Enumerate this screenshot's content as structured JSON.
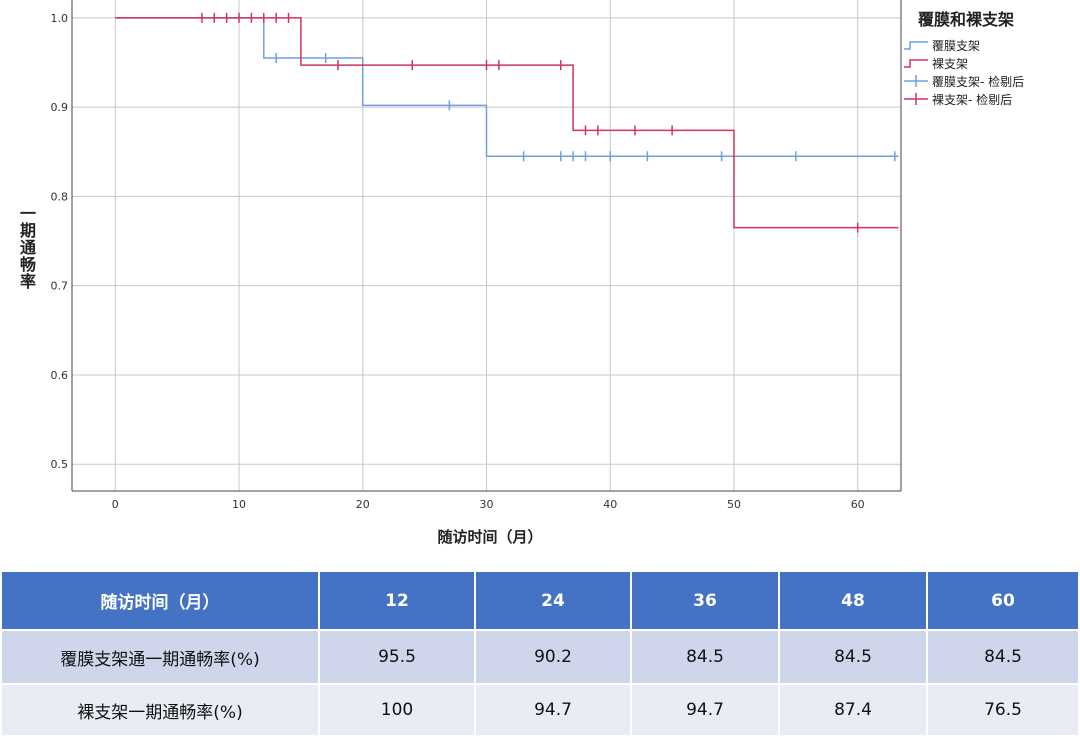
{
  "chart_data": {
    "type": "line",
    "step": true,
    "ylabel": "一期通畅率",
    "xlabel": "随访时间（月）",
    "xlim": [
      -3.5,
      63.5
    ],
    "ylim": [
      0.47,
      1.02
    ],
    "x_ticks": [
      0,
      10,
      20,
      30,
      40,
      50,
      60
    ],
    "y_ticks": [
      0.5,
      0.6,
      0.7,
      0.8,
      0.9,
      1.0
    ],
    "x_tick_labels": [
      "0",
      "10",
      "20",
      "30",
      "40",
      "50",
      "60"
    ],
    "y_tick_labels": [
      "0.5",
      "0.6",
      "0.7",
      "0.8",
      "0.9",
      "1.0"
    ],
    "grid": true,
    "legend_title": "覆膜和裸支架",
    "legend_position": "top-right",
    "legend_entries": [
      "覆膜支架",
      "裸支架",
      "覆膜支架- 检剔后",
      "裸支架- 检剔后"
    ],
    "series": [
      {
        "name": "覆膜支架",
        "color": "#6fa0e0",
        "steps": [
          [
            0,
            1.0
          ],
          [
            12,
            0.955
          ],
          [
            20,
            0.902
          ],
          [
            30,
            0.845
          ],
          [
            63.3,
            0.845
          ]
        ],
        "censored": [
          [
            13,
            0.955
          ],
          [
            17,
            0.955
          ],
          [
            27,
            0.902
          ],
          [
            33,
            0.845
          ],
          [
            36,
            0.845
          ],
          [
            37,
            0.845
          ],
          [
            38,
            0.845
          ],
          [
            40,
            0.845
          ],
          [
            43,
            0.845
          ],
          [
            49,
            0.845
          ],
          [
            55,
            0.845
          ],
          [
            63,
            0.845
          ]
        ]
      },
      {
        "name": "裸支架",
        "color": "#d1335a",
        "steps": [
          [
            0,
            1.0
          ],
          [
            15,
            0.947
          ],
          [
            37,
            0.874
          ],
          [
            50,
            0.765
          ],
          [
            63.3,
            0.765
          ]
        ],
        "censored": [
          [
            7,
            1.0
          ],
          [
            8,
            1.0
          ],
          [
            9,
            1.0
          ],
          [
            10,
            1.0
          ],
          [
            11,
            1.0
          ],
          [
            12,
            1.0
          ],
          [
            13,
            1.0
          ],
          [
            14,
            1.0
          ],
          [
            18,
            0.947
          ],
          [
            24,
            0.947
          ],
          [
            30,
            0.947
          ],
          [
            31,
            0.947
          ],
          [
            36,
            0.947
          ],
          [
            38,
            0.874
          ],
          [
            39,
            0.874
          ],
          [
            42,
            0.874
          ],
          [
            45,
            0.874
          ],
          [
            60,
            0.765
          ]
        ]
      }
    ]
  },
  "table": {
    "headers": [
      "随访时间（月）",
      "12",
      "24",
      "36",
      "48",
      "60"
    ],
    "rows": [
      [
        "覆膜支架通一期通畅率(%)",
        "95.5",
        "90.2",
        "84.5",
        "84.5",
        "84.5"
      ],
      [
        "裸支架一期通畅率(%)",
        "100",
        "94.7",
        "94.7",
        "87.4",
        "76.5"
      ]
    ]
  }
}
